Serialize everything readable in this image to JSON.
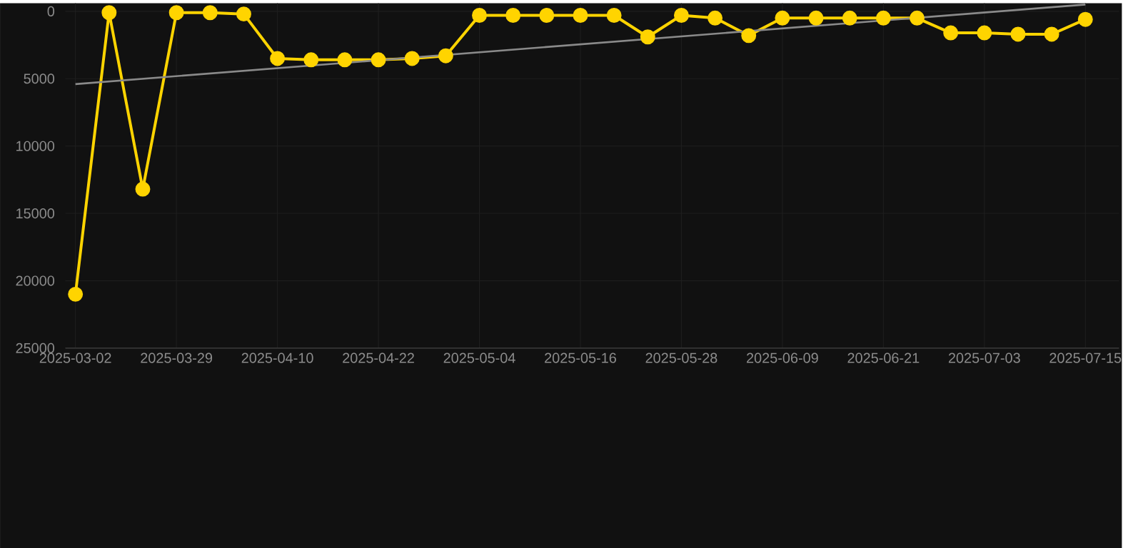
{
  "chart_data": {
    "type": "line",
    "categories": [
      "2025-03-02",
      null,
      null,
      "2025-03-29",
      null,
      null,
      "2025-04-10",
      null,
      null,
      "2025-04-22",
      null,
      null,
      "2025-05-04",
      null,
      null,
      "2025-05-16",
      null,
      null,
      "2025-05-28",
      null,
      null,
      "2025-06-09",
      null,
      null,
      "2025-06-21",
      null,
      null,
      "2025-07-03",
      null,
      null,
      "2025-07-15"
    ],
    "series": [
      {
        "color": "#ffd400",
        "marker": "circle",
        "line_style": "solid",
        "values": [
          21000,
          100,
          13200,
          100,
          100,
          200,
          3500,
          3600,
          3600,
          3600,
          3500,
          3300,
          300,
          300,
          300,
          300,
          300,
          1900,
          300,
          500,
          1800,
          500,
          500,
          500,
          500,
          500,
          1600,
          1600,
          1700,
          1700,
          600
        ]
      },
      {
        "type": "line",
        "color": "#8a8a8a",
        "marker": "none",
        "line_style": "solid",
        "values": [
          5400,
          null,
          null,
          null,
          null,
          null,
          null,
          null,
          null,
          null,
          null,
          null,
          null,
          null,
          null,
          null,
          null,
          null,
          null,
          null,
          null,
          null,
          null,
          null,
          null,
          null,
          null,
          null,
          null,
          null,
          -500
        ]
      }
    ],
    "ylim": [
      25000,
      -600
    ],
    "yticks": [
      0,
      5000,
      10000,
      15000,
      20000,
      25000
    ],
    "grid": true
  }
}
